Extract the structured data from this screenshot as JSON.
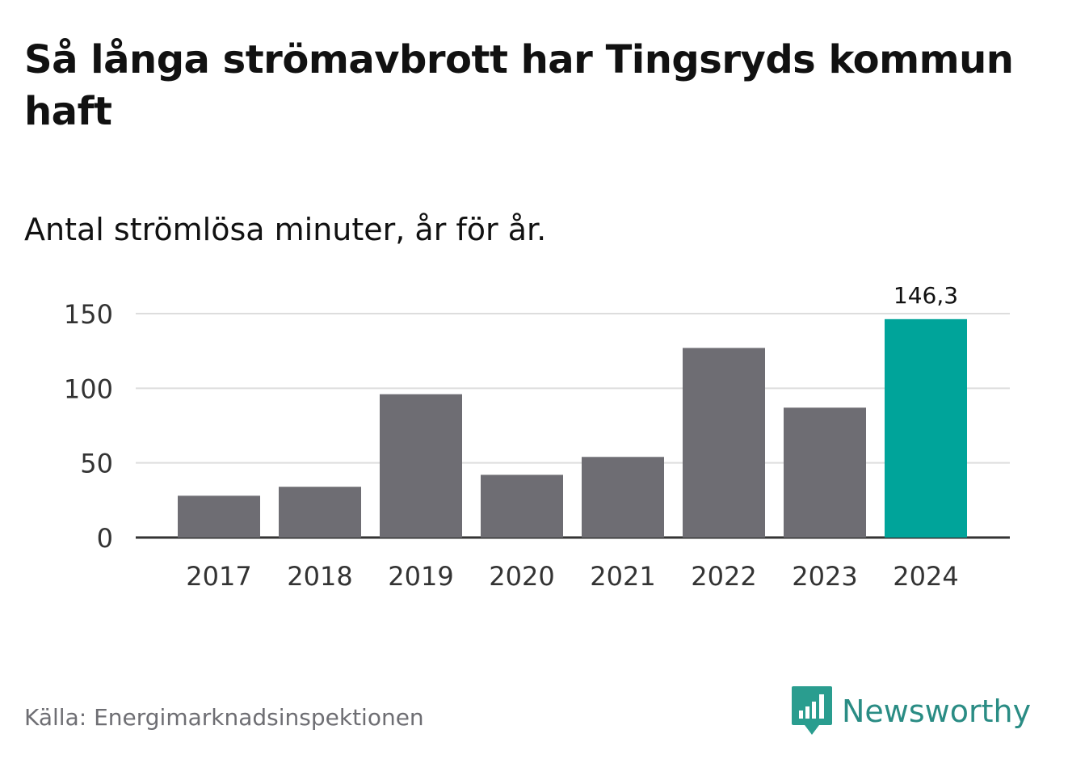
{
  "title": "Så långa strömavbrott har Tingsryds kommun haft",
  "subtitle": "Antal strömlösa minuter, år för år.",
  "source": "Källa: Energimarknadsinspektionen",
  "logo": {
    "name": "Newsworthy",
    "icon": "bar-chart-speech-bubble-icon",
    "color": "#2a9d8f"
  },
  "colors": {
    "bar": "#6e6d73",
    "highlight": "#00a49a",
    "grid": "#dddddd",
    "axis": "#333333",
    "text": "#333333"
  },
  "chart_data": {
    "type": "bar",
    "categories": [
      "2017",
      "2018",
      "2019",
      "2020",
      "2021",
      "2022",
      "2023",
      "2024"
    ],
    "values": [
      28,
      34,
      96,
      42,
      54,
      127,
      87,
      146.3
    ],
    "highlight_index": 7,
    "data_labels": [
      {
        "index": 7,
        "text": "146,3"
      }
    ],
    "yticks": [
      0,
      50,
      100,
      150
    ],
    "ylim": [
      0,
      160
    ],
    "xlabel": "",
    "ylabel": "",
    "grid": true
  }
}
